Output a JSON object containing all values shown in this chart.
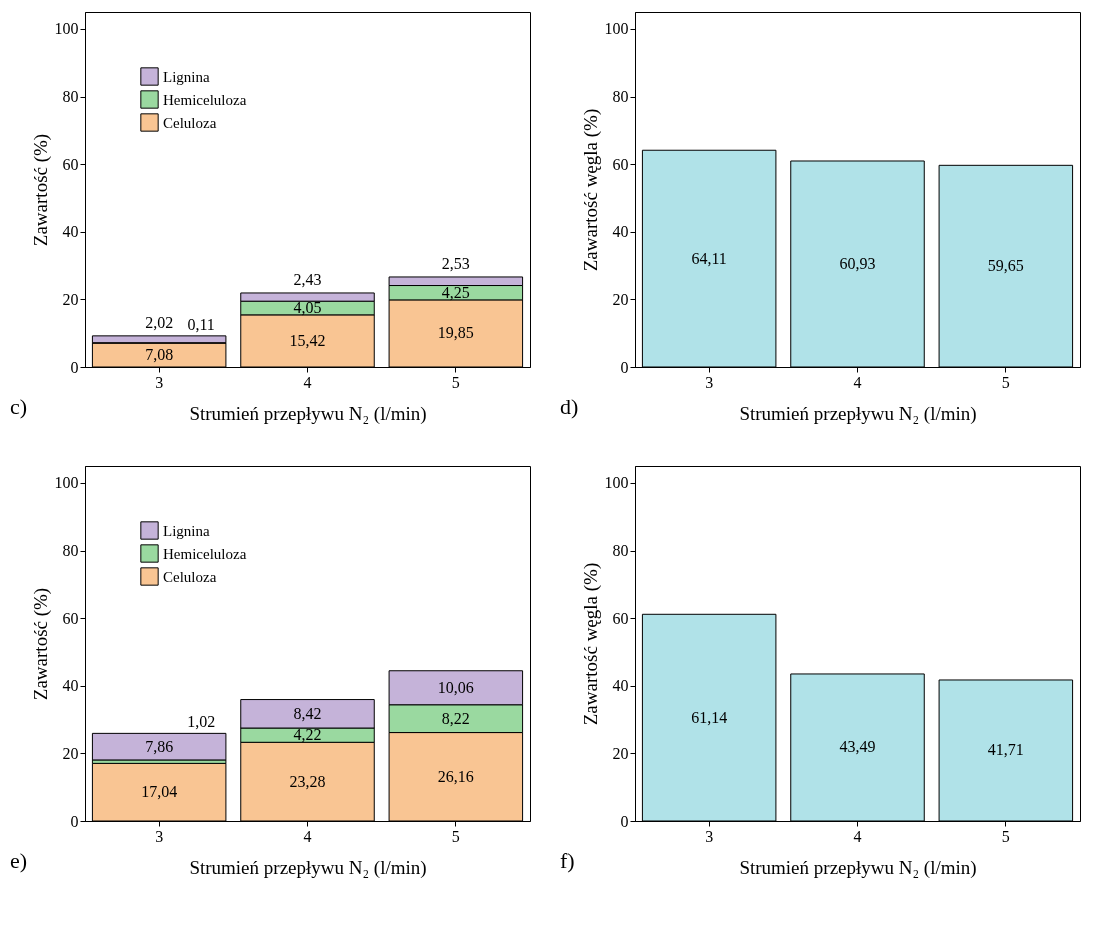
{
  "chart_data": [
    {
      "type": "bar",
      "stacked": true,
      "categories": [
        "3",
        "4",
        "5"
      ],
      "xlabel": "Strumień przepływu N₂ (l/min)",
      "ylabel": "Zawartość (%)",
      "ylim": [
        0,
        105
      ],
      "yticks": [
        0,
        20,
        40,
        60,
        80,
        100
      ],
      "grid": false,
      "legend": "top left",
      "annotations": [
        "c)"
      ],
      "series": [
        {
          "name": "Celuloza",
          "color": "#f9c593",
          "values": [
            7.08,
            15.42,
            19.85
          ],
          "value_labels": [
            "7,08",
            "15,42",
            "19,85"
          ]
        },
        {
          "name": "Hemiceluloza",
          "color": "#9ad9a0",
          "values": [
            0.11,
            4.05,
            4.25
          ],
          "value_labels": [
            "0,11",
            "4,05",
            "4,25"
          ]
        },
        {
          "name": "Lignina",
          "color": "#c5b3d9",
          "values": [
            2.02,
            2.43,
            2.53
          ],
          "value_labels": [
            "2,02",
            "2,43",
            "2,53"
          ]
        }
      ]
    },
    {
      "type": "bar",
      "categories": [
        "3",
        "4",
        "5"
      ],
      "xlabel": "Strumień przepływu N₂ (l/min)",
      "ylabel": "Zawartość węgla (%)",
      "ylim": [
        0,
        105
      ],
      "yticks": [
        0,
        20,
        40,
        60,
        80,
        100
      ],
      "grid": false,
      "annotations": [
        "d)"
      ],
      "color": "#b0e2e8",
      "values": [
        64.11,
        60.93,
        59.65
      ],
      "value_labels": [
        "64,11",
        "60,93",
        "59,65"
      ]
    },
    {
      "type": "bar",
      "stacked": true,
      "categories": [
        "3",
        "4",
        "5"
      ],
      "xlabel": "Strumień przepływu N₂ (l/min)",
      "ylabel": "Zawartość (%)",
      "ylim": [
        0,
        105
      ],
      "yticks": [
        0,
        20,
        40,
        60,
        80,
        100
      ],
      "grid": false,
      "legend": "top left",
      "annotations": [
        "e)"
      ],
      "series": [
        {
          "name": "Celuloza",
          "color": "#f9c593",
          "values": [
            17.04,
            23.28,
            26.16
          ],
          "value_labels": [
            "17,04",
            "23,28",
            "26,16"
          ]
        },
        {
          "name": "Hemiceluloza",
          "color": "#9ad9a0",
          "values": [
            1.02,
            4.22,
            8.22
          ],
          "value_labels": [
            "1,02",
            "4,22",
            "8,22"
          ]
        },
        {
          "name": "Lignina",
          "color": "#c5b3d9",
          "values": [
            7.86,
            8.42,
            10.06
          ],
          "value_labels": [
            "7,86",
            "8,42",
            "10,06"
          ]
        }
      ]
    },
    {
      "type": "bar",
      "categories": [
        "3",
        "4",
        "5"
      ],
      "xlabel": "Strumień przepływu N₂ (l/min)",
      "ylabel": "Zawartość węgla (%)",
      "ylim": [
        0,
        105
      ],
      "yticks": [
        0,
        20,
        40,
        60,
        80,
        100
      ],
      "grid": false,
      "annotations": [
        "f)"
      ],
      "color": "#b0e2e8",
      "values": [
        61.14,
        43.49,
        41.71
      ],
      "value_labels": [
        "61,14",
        "43,49",
        "41,71"
      ]
    }
  ]
}
